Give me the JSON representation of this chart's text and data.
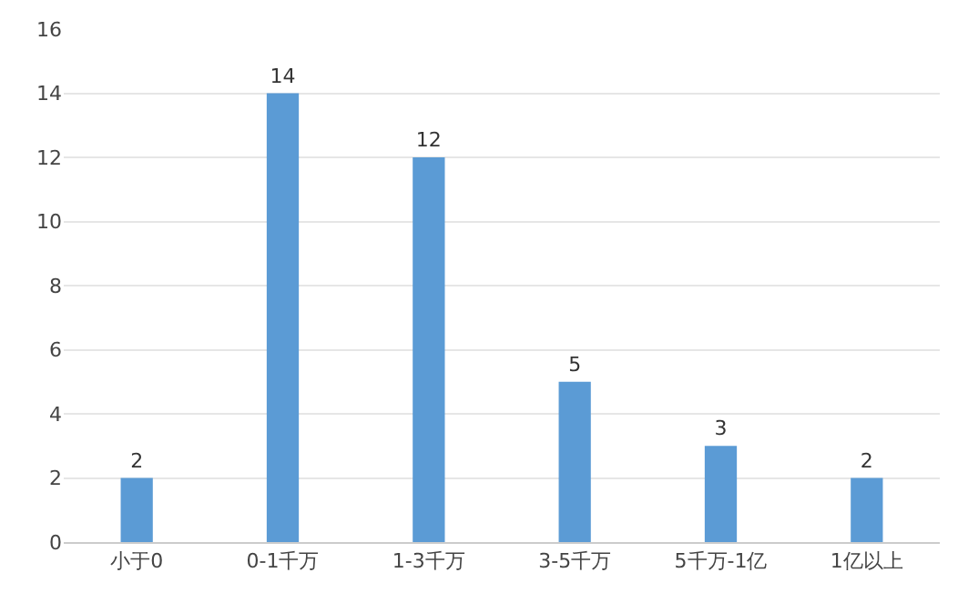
{
  "chart_data": {
    "type": "bar",
    "categories": [
      "小于0",
      "0-1千万",
      "1-3千万",
      "3-5千万",
      "5千万-1亿",
      "1亿以上"
    ],
    "values": [
      2,
      14,
      12,
      5,
      3,
      2
    ],
    "color": "#5b9bd5",
    "ylim": [
      0,
      16
    ],
    "yticks": [
      0,
      2,
      4,
      6,
      8,
      10,
      12,
      14,
      16
    ],
    "grid": "y",
    "data_labels": true
  }
}
